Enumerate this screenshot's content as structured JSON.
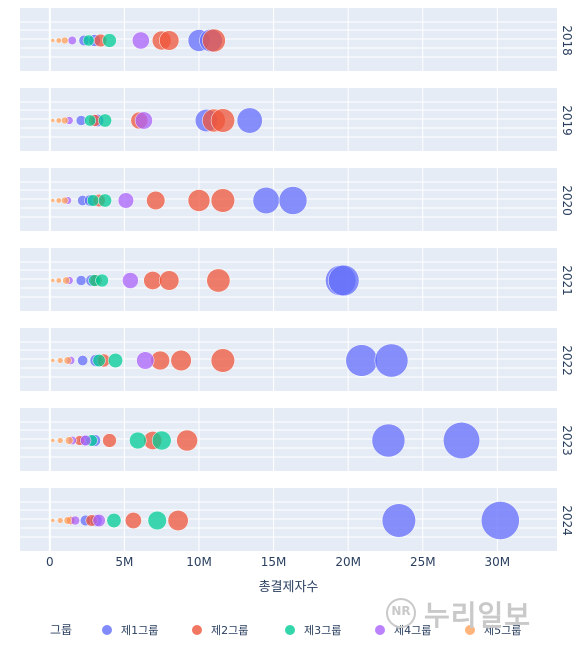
{
  "chart_data": {
    "type": "scatter",
    "xlabel": "총결제자수",
    "x_ticks": [
      {
        "value": 0,
        "label": "0"
      },
      {
        "value": 5000000,
        "label": "5M"
      },
      {
        "value": 10000000,
        "label": "10M"
      },
      {
        "value": 15000000,
        "label": "15M"
      },
      {
        "value": 20000000,
        "label": "20M"
      },
      {
        "value": 25000000,
        "label": "25M"
      },
      {
        "value": 30000000,
        "label": "30M"
      }
    ],
    "xlim": [
      -2000000,
      34000000
    ],
    "grid": true,
    "facets": [
      "2018",
      "2019",
      "2020",
      "2021",
      "2022",
      "2023",
      "2024"
    ],
    "legend": {
      "title": "그룹",
      "placement": "bottom",
      "entries": [
        {
          "name": "제1그룹",
          "color": "#636efa"
        },
        {
          "name": "제2그룹",
          "color": "#ef553b"
        },
        {
          "name": "제3그룹",
          "color": "#00cc96"
        },
        {
          "name": "제4그룹",
          "color": "#ab63fa"
        },
        {
          "name": "제5그룹",
          "color": "#ffa15a"
        }
      ]
    },
    "series": [
      {
        "name": "제1그룹",
        "points": [
          {
            "year": "2018",
            "x": 10000000
          },
          {
            "year": "2018",
            "x": 10800000
          },
          {
            "year": "2018",
            "x": 2300000
          },
          {
            "year": "2018",
            "x": 3000000
          },
          {
            "year": "2019",
            "x": 10500000
          },
          {
            "year": "2019",
            "x": 13400000
          },
          {
            "year": "2019",
            "x": 2100000
          },
          {
            "year": "2019",
            "x": 3200000
          },
          {
            "year": "2020",
            "x": 14500000
          },
          {
            "year": "2020",
            "x": 16300000
          },
          {
            "year": "2020",
            "x": 2200000
          },
          {
            "year": "2020",
            "x": 2700000
          },
          {
            "year": "2021",
            "x": 19500000
          },
          {
            "year": "2021",
            "x": 19700000
          },
          {
            "year": "2021",
            "x": 2100000
          },
          {
            "year": "2021",
            "x": 2800000
          },
          {
            "year": "2022",
            "x": 20900000
          },
          {
            "year": "2022",
            "x": 22900000
          },
          {
            "year": "2022",
            "x": 2200000
          },
          {
            "year": "2022",
            "x": 3100000
          },
          {
            "year": "2023",
            "x": 22700000
          },
          {
            "year": "2023",
            "x": 27600000
          },
          {
            "year": "2023",
            "x": 2300000
          },
          {
            "year": "2023",
            "x": 3000000
          },
          {
            "year": "2024",
            "x": 23400000
          },
          {
            "year": "2024",
            "x": 30200000
          },
          {
            "year": "2024",
            "x": 2400000
          },
          {
            "year": "2024",
            "x": 3100000
          }
        ]
      },
      {
        "name": "제2그룹",
        "points": [
          {
            "year": "2018",
            "x": 7500000
          },
          {
            "year": "2018",
            "x": 8000000
          },
          {
            "year": "2018",
            "x": 11000000
          },
          {
            "year": "2018",
            "x": 3400000
          },
          {
            "year": "2019",
            "x": 6000000
          },
          {
            "year": "2019",
            "x": 11000000
          },
          {
            "year": "2019",
            "x": 11600000
          },
          {
            "year": "2019",
            "x": 3000000
          },
          {
            "year": "2020",
            "x": 7100000
          },
          {
            "year": "2020",
            "x": 10000000
          },
          {
            "year": "2020",
            "x": 11600000
          },
          {
            "year": "2020",
            "x": 3300000
          },
          {
            "year": "2021",
            "x": 6900000
          },
          {
            "year": "2021",
            "x": 8000000
          },
          {
            "year": "2021",
            "x": 11300000
          },
          {
            "year": "2021",
            "x": 3100000
          },
          {
            "year": "2022",
            "x": 7400000
          },
          {
            "year": "2022",
            "x": 8800000
          },
          {
            "year": "2022",
            "x": 11600000
          },
          {
            "year": "2022",
            "x": 3600000
          },
          {
            "year": "2023",
            "x": 4000000
          },
          {
            "year": "2023",
            "x": 6900000
          },
          {
            "year": "2023",
            "x": 9200000
          },
          {
            "year": "2023",
            "x": 2000000
          },
          {
            "year": "2024",
            "x": 2800000
          },
          {
            "year": "2024",
            "x": 5600000
          },
          {
            "year": "2024",
            "x": 8600000
          },
          {
            "year": "2024",
            "x": 1400000
          }
        ]
      },
      {
        "name": "제3그룹",
        "points": [
          {
            "year": "2018",
            "x": 2600000
          },
          {
            "year": "2018",
            "x": 4000000
          },
          {
            "year": "2019",
            "x": 2700000
          },
          {
            "year": "2019",
            "x": 3700000
          },
          {
            "year": "2020",
            "x": 2900000
          },
          {
            "year": "2020",
            "x": 3700000
          },
          {
            "year": "2021",
            "x": 3000000
          },
          {
            "year": "2021",
            "x": 3500000
          },
          {
            "year": "2022",
            "x": 3300000
          },
          {
            "year": "2022",
            "x": 4400000
          },
          {
            "year": "2023",
            "x": 2800000
          },
          {
            "year": "2023",
            "x": 5900000
          },
          {
            "year": "2023",
            "x": 7500000
          },
          {
            "year": "2024",
            "x": 4300000
          },
          {
            "year": "2024",
            "x": 7200000
          }
        ]
      },
      {
        "name": "제4그룹",
        "points": [
          {
            "year": "2018",
            "x": 1500000
          },
          {
            "year": "2018",
            "x": 6100000
          },
          {
            "year": "2019",
            "x": 1300000
          },
          {
            "year": "2019",
            "x": 6300000
          },
          {
            "year": "2020",
            "x": 1200000
          },
          {
            "year": "2020",
            "x": 5100000
          },
          {
            "year": "2021",
            "x": 1300000
          },
          {
            "year": "2021",
            "x": 5400000
          },
          {
            "year": "2022",
            "x": 1400000
          },
          {
            "year": "2022",
            "x": 6400000
          },
          {
            "year": "2023",
            "x": 1500000
          },
          {
            "year": "2023",
            "x": 2400000
          },
          {
            "year": "2024",
            "x": 1700000
          },
          {
            "year": "2024",
            "x": 3300000
          }
        ]
      },
      {
        "name": "제5그룹",
        "points": [
          {
            "year": "2018",
            "x": 200000
          },
          {
            "year": "2018",
            "x": 600000
          },
          {
            "year": "2018",
            "x": 1000000
          },
          {
            "year": "2019",
            "x": 200000
          },
          {
            "year": "2019",
            "x": 600000
          },
          {
            "year": "2019",
            "x": 1000000
          },
          {
            "year": "2020",
            "x": 200000
          },
          {
            "year": "2020",
            "x": 600000
          },
          {
            "year": "2020",
            "x": 1000000
          },
          {
            "year": "2021",
            "x": 200000
          },
          {
            "year": "2021",
            "x": 600000
          },
          {
            "year": "2021",
            "x": 1100000
          },
          {
            "year": "2022",
            "x": 200000
          },
          {
            "year": "2022",
            "x": 700000
          },
          {
            "year": "2022",
            "x": 1200000
          },
          {
            "year": "2023",
            "x": 200000
          },
          {
            "year": "2023",
            "x": 700000
          },
          {
            "year": "2023",
            "x": 1300000
          },
          {
            "year": "2024",
            "x": 200000
          },
          {
            "year": "2024",
            "x": 700000
          },
          {
            "year": "2024",
            "x": 1200000
          }
        ]
      }
    ]
  },
  "watermark": {
    "text": "누리일보",
    "badge": "NR"
  }
}
